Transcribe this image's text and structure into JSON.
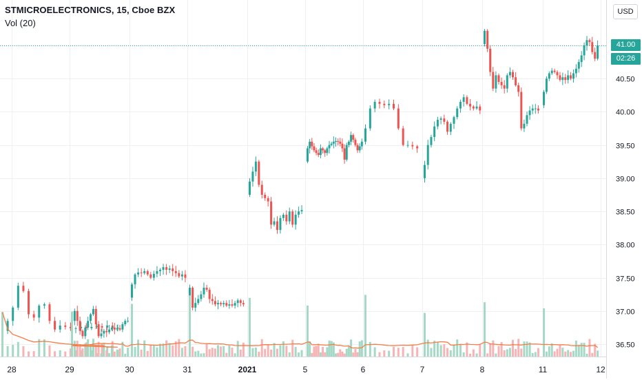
{
  "legend": {
    "title": "STMICROELECTRONICS, 15, Cboe BZX",
    "volume_label": "Vol (20)"
  },
  "axis": {
    "currency": "USD",
    "last_price": "41.00",
    "countdown": "02:26"
  },
  "colors": {
    "up": "#26a69a",
    "down": "#ef5350",
    "up_volume": "#a5d9c6",
    "down_volume": "#f6b5b4",
    "volume_ma": "#f57c44",
    "grid": "#eef0f3",
    "last_price_line": "#26a69a"
  },
  "chart_data": {
    "type": "candlestick",
    "y_ticks": [
      "36.50",
      "37.00",
      "37.50",
      "38.00",
      "38.50",
      "39.00",
      "39.50",
      "40.00",
      "40.50",
      "41.00"
    ],
    "ylim": [
      36.35,
      41.55
    ],
    "x_ticks": [
      "28",
      "29",
      "30",
      "31",
      "2021",
      "5",
      "6",
      "7",
      "8",
      "11",
      "12"
    ],
    "last_price": 41.0,
    "grid": true,
    "series": [
      {
        "session": "28",
        "closes": [
          36.7,
          36.85,
          37.05,
          37.38,
          37.3,
          36.95,
          36.9,
          37.08,
          37.1,
          36.85,
          36.72,
          36.78,
          36.76,
          36.74,
          36.74,
          36.76,
          36.74,
          36.76,
          36.77,
          36.75,
          36.78,
          36.74,
          36.75
        ]
      },
      {
        "session": "29",
        "closes": [
          36.85,
          37.0,
          36.85,
          36.7,
          36.62,
          36.75,
          36.85,
          36.95,
          37.03,
          36.8,
          36.62,
          36.66,
          36.7,
          36.68,
          36.72,
          36.75,
          36.72,
          36.74,
          36.72,
          36.8,
          36.85,
          36.85
        ]
      },
      {
        "session": "30",
        "closes": [
          37.4,
          37.55,
          37.58,
          37.57,
          37.6,
          37.55,
          37.5,
          37.56,
          37.6,
          37.62,
          37.66,
          37.62,
          37.64,
          37.6,
          37.57,
          37.52,
          37.55,
          37.5
        ]
      },
      {
        "session": "31",
        "closes": [
          37.35,
          37.05,
          37.12,
          37.18,
          37.25,
          37.35,
          37.32,
          37.18,
          37.15,
          37.1,
          37.12,
          37.1,
          37.12,
          37.08,
          37.1,
          37.08,
          37.12,
          37.16,
          37.12,
          37.1
        ]
      },
      {
        "session": "2021",
        "closes": [
          38.95,
          39.1,
          39.25,
          38.9,
          38.75,
          38.7,
          38.65,
          38.3,
          38.35,
          38.22,
          38.4,
          38.45,
          38.35,
          38.5,
          38.3,
          38.45,
          38.5,
          38.52
        ]
      },
      {
        "session": "5",
        "closes": [
          39.45,
          39.55,
          39.48,
          39.42,
          39.38,
          39.35,
          39.45,
          39.42,
          39.38,
          39.45,
          39.5,
          39.52,
          39.55,
          39.56,
          39.55,
          39.52,
          39.45,
          39.28,
          39.5,
          39.55,
          39.65,
          39.58,
          39.5,
          39.42,
          39.48,
          39.55
        ]
      },
      {
        "session": "6",
        "closes": [
          39.75,
          40.05,
          40.15,
          40.12,
          40.1,
          40.12,
          40.05,
          39.75,
          39.5,
          39.5,
          39.48,
          39.45
        ]
      },
      {
        "session": "7",
        "closes": [
          39.2,
          39.5,
          39.62,
          39.78,
          39.88,
          39.9,
          39.85,
          39.7,
          39.82,
          39.92,
          40.05,
          40.15,
          40.22,
          40.12,
          40.08,
          40.05,
          40.08,
          40.02
        ]
      },
      {
        "session": "8",
        "closes": [
          41.22,
          40.95,
          40.6,
          40.35,
          40.55,
          40.45,
          40.4,
          40.35,
          40.55,
          40.6,
          40.52,
          40.4,
          40.3,
          39.75,
          39.82,
          39.95,
          40.02,
          40.05,
          40.05,
          40.02
        ]
      },
      {
        "session": "11",
        "closes": [
          40.3,
          40.5,
          40.58,
          40.62,
          40.6,
          40.55,
          40.48,
          40.52,
          40.48,
          40.55,
          40.5,
          40.58,
          40.65,
          40.75,
          40.85,
          41.0,
          41.08,
          41.05,
          40.9,
          40.8,
          41.0
        ]
      }
    ]
  }
}
